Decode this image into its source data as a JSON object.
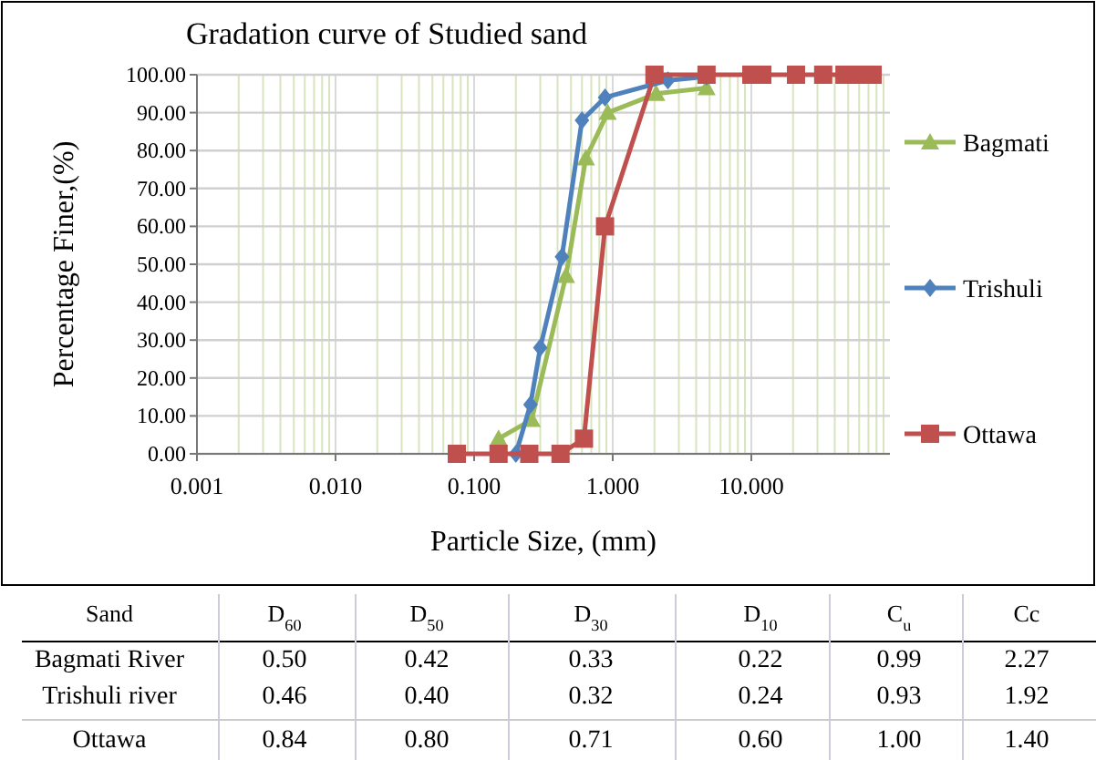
{
  "chart_data": {
    "type": "line",
    "title": "Gradation curve of  Studied sand",
    "xlabel": "Particle Size, (mm)",
    "ylabel": "Percentage Finer,(%)",
    "log": "x",
    "xlim": [
      0.001,
      100
    ],
    "xticks": [
      {
        "value": 0.001,
        "label": "0.001"
      },
      {
        "value": 0.01,
        "label": "0.010"
      },
      {
        "value": 0.1,
        "label": "0.100"
      },
      {
        "value": 1,
        "label": "1.000"
      },
      {
        "value": 10,
        "label": "10.000"
      }
    ],
    "ylim": [
      0,
      100
    ],
    "yticks": [
      {
        "value": 0,
        "label": "0.00"
      },
      {
        "value": 10,
        "label": "10.00"
      },
      {
        "value": 20,
        "label": "20.00"
      },
      {
        "value": 30,
        "label": "30.00"
      },
      {
        "value": 40,
        "label": "40.00"
      },
      {
        "value": 50,
        "label": "50.00"
      },
      {
        "value": 60,
        "label": "60.00"
      },
      {
        "value": 70,
        "label": "70.00"
      },
      {
        "value": 80,
        "label": "80.00"
      },
      {
        "value": 90,
        "label": "90.00"
      },
      {
        "value": 100,
        "label": "100.00"
      }
    ],
    "grid": true,
    "legend": "right",
    "series": [
      {
        "name": "Bagmati",
        "color": "#9bbb59",
        "marker": "triangle",
        "x": [
          0.15,
          0.26,
          0.46,
          0.64,
          0.92,
          2.06,
          4.75
        ],
        "values": [
          4,
          9,
          47,
          78,
          90,
          95,
          96.5
        ]
      },
      {
        "name": "Trishuli",
        "color": "#4f81bd",
        "marker": "diamond",
        "x": [
          0.2,
          0.255,
          0.3,
          0.43,
          0.6,
          0.88,
          2.5,
          4.75
        ],
        "values": [
          0,
          13,
          28,
          52,
          88,
          94,
          98.5,
          99.5
        ]
      },
      {
        "name": "Ottawa",
        "color": "#c0504d",
        "marker": "square",
        "x": [
          0.075,
          0.15,
          0.25,
          0.42,
          0.62,
          0.88,
          2.0,
          4.75,
          10,
          12,
          21,
          33,
          47,
          60,
          75
        ],
        "values": [
          0,
          0,
          0,
          0,
          4,
          60,
          100,
          100,
          100,
          100,
          100,
          100,
          100,
          100,
          100
        ]
      }
    ],
    "annotations": [
      "Sand",
      "D$_{60}$",
      "D$_{50}$",
      "D$_{30}$",
      "D$_{10}$",
      "C$_{u}$",
      "Cc",
      "Bagmati River",
      "0.50",
      "0.42",
      "0.33",
      "0.22",
      "0.99",
      "2.27",
      "Trishuli river",
      "0.46",
      "0.40",
      "0.32",
      "0.24",
      "0.93",
      "1.92",
      "Ottawa",
      "0.84",
      "0.80",
      "0.71",
      "0.60",
      "1.00",
      "1.40"
    ]
  }
}
